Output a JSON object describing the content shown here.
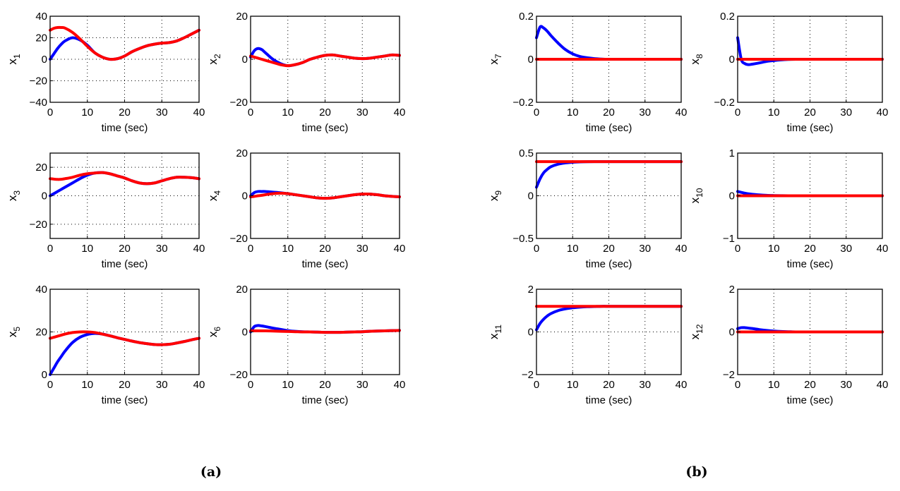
{
  "captions": [
    "(a)",
    "(b)"
  ],
  "chart_data": {
    "type": "line",
    "colors": {
      "blue": "#0000ff",
      "red": "#ff0000"
    },
    "t": [
      0,
      1,
      2,
      3,
      4,
      6,
      8,
      10,
      12,
      14,
      16,
      18,
      20,
      22,
      24,
      26,
      28,
      30,
      32,
      34,
      36,
      38,
      40
    ],
    "xlim": [
      0,
      40
    ],
    "xticks": [
      0,
      10,
      20,
      30,
      40
    ],
    "xlabel": "time (sec)",
    "grid": true,
    "panels": [
      {
        "name": "x1",
        "ylabel": "x",
        "sub": "1",
        "group": "a",
        "ylim": [
          -40,
          40
        ],
        "yticks": [
          -40,
          -20,
          0,
          20,
          40
        ],
        "blue": [
          0,
          5,
          10,
          14,
          17,
          20,
          18,
          13,
          6,
          2,
          0,
          0.5,
          3,
          7,
          10,
          12.5,
          14,
          15,
          15.5,
          17,
          20,
          23.5,
          27
        ],
        "red": [
          27,
          28.8,
          29.5,
          29.5,
          29,
          25,
          19,
          12,
          6,
          2,
          0,
          0.5,
          3,
          7,
          10,
          12.5,
          14,
          15,
          15.5,
          17,
          20,
          23.5,
          27
        ]
      },
      {
        "name": "x2",
        "ylabel": "x",
        "sub": "2",
        "group": "a",
        "ylim": [
          -20,
          20
        ],
        "yticks": [
          -20,
          0,
          20
        ],
        "blue": [
          1,
          4,
          5,
          4.5,
          3,
          0,
          -2,
          -3,
          -2.5,
          -1.5,
          0,
          1,
          1.8,
          2,
          1.5,
          1,
          0.5,
          0.3,
          0.5,
          1,
          1.5,
          2,
          1.8
        ],
        "red": [
          1.5,
          1,
          0.5,
          0,
          -0.5,
          -1.5,
          -2.5,
          -3,
          -2.5,
          -1.5,
          0,
          1,
          1.8,
          2,
          1.5,
          1,
          0.5,
          0.3,
          0.5,
          1,
          1.5,
          2,
          1.8
        ]
      },
      {
        "name": "x3",
        "ylabel": "x",
        "sub": "3",
        "group": "a",
        "ylim": [
          -30,
          30
        ],
        "yticks": [
          -20,
          0,
          20
        ],
        "blue": [
          0,
          1.5,
          3,
          4.5,
          6,
          9,
          12,
          14.5,
          16,
          16.3,
          15.5,
          14,
          12.5,
          10.5,
          9,
          8.5,
          9,
          10.5,
          12,
          13,
          13,
          12.7,
          12
        ],
        "red": [
          12,
          11.7,
          11.5,
          11.6,
          12,
          13,
          14.5,
          15.5,
          16,
          16.3,
          15.5,
          14,
          12.5,
          10.5,
          9,
          8.5,
          9,
          10.5,
          12,
          13,
          13,
          12.7,
          12
        ]
      },
      {
        "name": "x4",
        "ylabel": "x",
        "sub": "4",
        "group": "a",
        "ylim": [
          -20,
          20
        ],
        "yticks": [
          -20,
          0,
          20
        ],
        "blue": [
          0,
          1.5,
          2,
          2,
          2,
          1.7,
          1.4,
          1,
          0.5,
          0,
          -0.5,
          -1,
          -1.2,
          -1,
          -0.5,
          0,
          0.5,
          0.8,
          0.8,
          0.5,
          0,
          -0.3,
          -0.5
        ],
        "red": [
          -0.5,
          -0.3,
          0,
          0.2,
          0.5,
          1,
          1.2,
          1,
          0.5,
          0,
          -0.5,
          -1,
          -1.2,
          -1,
          -0.5,
          0,
          0.5,
          0.8,
          0.8,
          0.5,
          0,
          -0.3,
          -0.5
        ]
      },
      {
        "name": "x5",
        "ylabel": "x",
        "sub": "5",
        "group": "a",
        "ylim": [
          0,
          40
        ],
        "yticks": [
          0,
          20,
          40
        ],
        "blue": [
          0,
          3,
          6,
          8.5,
          11,
          15,
          17.5,
          18.8,
          19.3,
          19,
          18.2,
          17.3,
          16.5,
          15.7,
          15,
          14.5,
          14.1,
          14,
          14.2,
          14.8,
          15.5,
          16.3,
          17
        ],
        "red": [
          17,
          17.5,
          18,
          18.5,
          19,
          19.7,
          20,
          20,
          19.7,
          19,
          18.2,
          17.3,
          16.5,
          15.7,
          15,
          14.5,
          14.1,
          14,
          14.2,
          14.8,
          15.5,
          16.3,
          17
        ]
      },
      {
        "name": "x6",
        "ylabel": "x",
        "sub": "6",
        "group": "a",
        "ylim": [
          -20,
          20
        ],
        "yticks": [
          -20,
          0,
          20
        ],
        "blue": [
          0,
          2.5,
          3,
          2.8,
          2.5,
          1.8,
          1.2,
          0.6,
          0.3,
          0.1,
          0,
          -0.1,
          -0.2,
          -0.2,
          -0.2,
          -0.1,
          0,
          0.1,
          0.3,
          0.4,
          0.5,
          0.6,
          0.7
        ],
        "red": [
          0.5,
          0.5,
          0.5,
          0.5,
          0.5,
          0.4,
          0.3,
          0.2,
          0.1,
          0,
          0,
          -0.1,
          -0.2,
          -0.2,
          -0.2,
          -0.1,
          0,
          0.1,
          0.3,
          0.4,
          0.5,
          0.6,
          0.7
        ]
      },
      {
        "name": "x7",
        "ylabel": "x",
        "sub": "7",
        "group": "b",
        "ylim": [
          -0.2,
          0.2
        ],
        "yticks": [
          -0.2,
          0,
          0.2
        ],
        "blue": [
          0.1,
          0.15,
          0.145,
          0.13,
          0.11,
          0.075,
          0.045,
          0.025,
          0.013,
          0.007,
          0.003,
          0.001,
          0,
          0,
          0,
          0,
          0,
          0,
          0,
          0,
          0,
          0,
          0
        ],
        "red": [
          0,
          0,
          0,
          0,
          0,
          0,
          0,
          0,
          0,
          0,
          0,
          0,
          0,
          0,
          0,
          0,
          0,
          0,
          0,
          0,
          0,
          0,
          0
        ]
      },
      {
        "name": "x8",
        "ylabel": "x",
        "sub": "8",
        "group": "b",
        "ylim": [
          -0.2,
          0.2
        ],
        "yticks": [
          -0.2,
          0,
          0.2
        ],
        "blue": [
          0.1,
          0,
          -0.02,
          -0.025,
          -0.023,
          -0.017,
          -0.01,
          -0.006,
          -0.003,
          -0.001,
          0,
          0,
          0,
          0,
          0,
          0,
          0,
          0,
          0,
          0,
          0,
          0,
          0
        ],
        "red": [
          0,
          0,
          0,
          0,
          0,
          0,
          0,
          0,
          0,
          0,
          0,
          0,
          0,
          0,
          0,
          0,
          0,
          0,
          0,
          0,
          0,
          0,
          0
        ]
      },
      {
        "name": "x9",
        "ylabel": "x",
        "sub": "9",
        "group": "b",
        "ylim": [
          -0.5,
          0.5
        ],
        "yticks": [
          -0.5,
          0,
          0.5
        ],
        "blue": [
          0.1,
          0.2,
          0.27,
          0.31,
          0.34,
          0.37,
          0.385,
          0.393,
          0.397,
          0.399,
          0.4,
          0.4,
          0.4,
          0.4,
          0.4,
          0.4,
          0.4,
          0.4,
          0.4,
          0.4,
          0.4,
          0.4,
          0.4
        ],
        "red": [
          0.4,
          0.4,
          0.4,
          0.4,
          0.4,
          0.4,
          0.4,
          0.4,
          0.4,
          0.4,
          0.4,
          0.4,
          0.4,
          0.4,
          0.4,
          0.4,
          0.4,
          0.4,
          0.4,
          0.4,
          0.4,
          0.4,
          0.4
        ]
      },
      {
        "name": "x10",
        "ylabel": "x",
        "sub": "10",
        "group": "b",
        "ylim": [
          -1,
          1
        ],
        "yticks": [
          -1,
          0,
          1
        ],
        "blue": [
          0.1,
          0.08,
          0.06,
          0.045,
          0.035,
          0.02,
          0.01,
          0.005,
          0.002,
          0,
          0,
          0,
          0,
          0,
          0,
          0,
          0,
          0,
          0,
          0,
          0,
          0,
          0
        ],
        "red": [
          0,
          0,
          0,
          0,
          0,
          0,
          0,
          0,
          0,
          0,
          0,
          0,
          0,
          0,
          0,
          0,
          0,
          0,
          0,
          0,
          0,
          0,
          0
        ]
      },
      {
        "name": "x11",
        "ylabel": "x",
        "sub": "11",
        "group": "b",
        "ylim": [
          -2,
          2
        ],
        "yticks": [
          -2,
          0,
          2
        ],
        "blue": [
          0.1,
          0.4,
          0.6,
          0.75,
          0.86,
          1.0,
          1.08,
          1.13,
          1.16,
          1.18,
          1.19,
          1.2,
          1.2,
          1.2,
          1.2,
          1.2,
          1.2,
          1.2,
          1.2,
          1.2,
          1.2,
          1.2,
          1.2
        ],
        "red": [
          1.2,
          1.2,
          1.2,
          1.2,
          1.2,
          1.2,
          1.2,
          1.2,
          1.2,
          1.2,
          1.2,
          1.2,
          1.2,
          1.2,
          1.2,
          1.2,
          1.2,
          1.2,
          1.2,
          1.2,
          1.2,
          1.2,
          1.2
        ]
      },
      {
        "name": "x12",
        "ylabel": "x",
        "sub": "12",
        "group": "b",
        "ylim": [
          -2,
          2
        ],
        "yticks": [
          -2,
          0,
          2
        ],
        "blue": [
          0.15,
          0.2,
          0.2,
          0.18,
          0.16,
          0.11,
          0.07,
          0.04,
          0.02,
          0.01,
          0,
          0,
          0,
          0,
          0,
          0,
          0,
          0,
          0,
          0,
          0,
          0,
          0
        ],
        "red": [
          0,
          0,
          0,
          0,
          0,
          0,
          0,
          0,
          0,
          0,
          0,
          0,
          0,
          0,
          0,
          0,
          0,
          0,
          0,
          0,
          0,
          0,
          0
        ]
      }
    ]
  }
}
